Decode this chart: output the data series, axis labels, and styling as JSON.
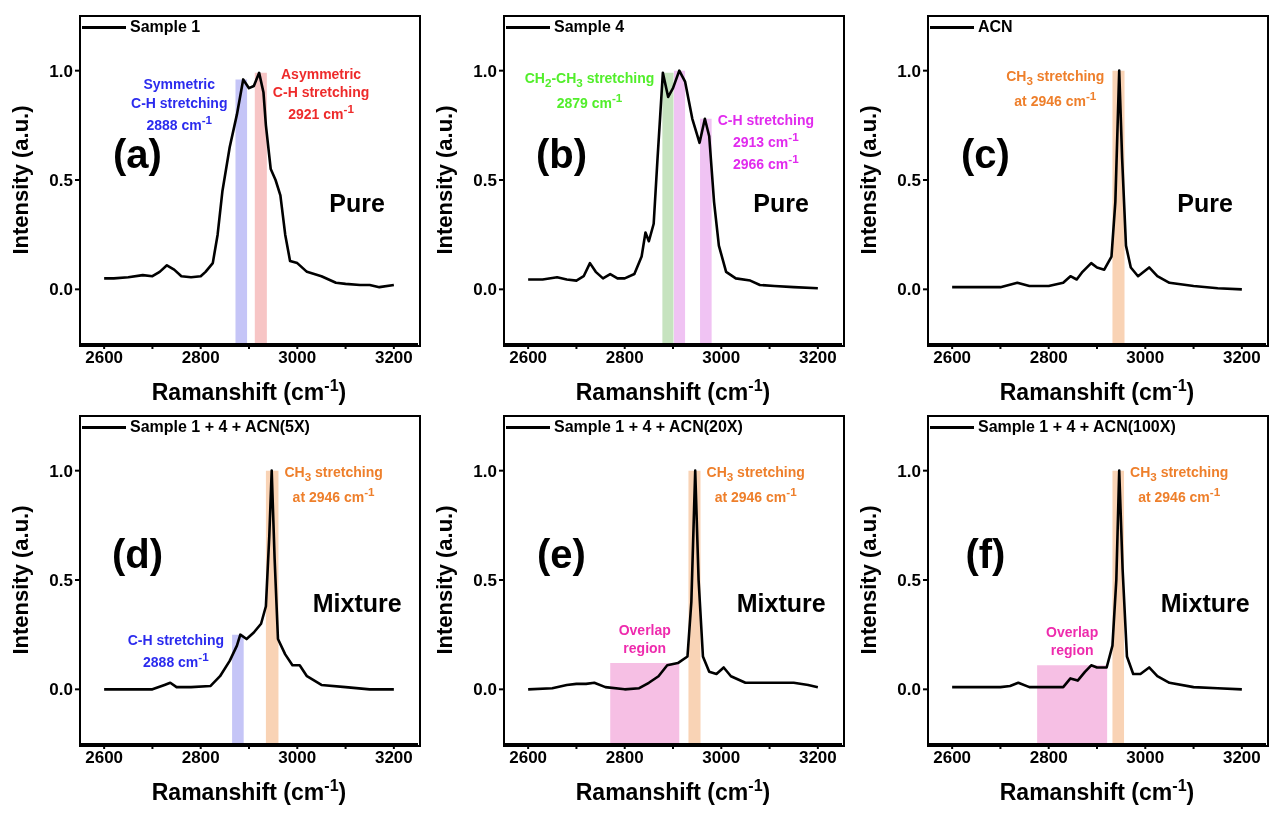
{
  "chart_data": [
    {
      "type": "line",
      "xlabel": "Ramanshift (cm$^{-1}$)",
      "ylabel": "Intensity (a.u.)",
      "xlim": [
        2550,
        3250
      ],
      "ylim": [
        -0.25,
        1.25
      ],
      "xticks": [
        2600,
        {
          "value": 2700,
          "label": null
        },
        2800,
        {
          "value": 2900,
          "label": null
        },
        3000,
        {
          "value": 3100,
          "label": null
        },
        3200
      ],
      "yticks": [
        {
          "value": 0,
          "label": "0.0"
        },
        {
          "value": 0.5,
          "label": "0.5"
        },
        {
          "value": 1,
          "label": "1.0"
        }
      ],
      "legend": "top left",
      "series": [
        {
          "name": "Sample 1",
          "color": "#000000",
          "x": [
            2600,
            2620,
            2650,
            2680,
            2700,
            2715,
            2730,
            2745,
            2760,
            2780,
            2800,
            2810,
            2825,
            2835,
            2845,
            2860,
            2875,
            2888,
            2900,
            2910,
            2921,
            2930,
            2935,
            2945,
            2955,
            2965,
            2975,
            2985,
            3000,
            3020,
            3050,
            3080,
            3100,
            3130,
            3150,
            3170,
            3200
          ],
          "values": [
            0.05,
            0.05,
            0.055,
            0.065,
            0.06,
            0.08,
            0.11,
            0.09,
            0.06,
            0.055,
            0.06,
            0.08,
            0.12,
            0.25,
            0.45,
            0.65,
            0.8,
            0.96,
            0.92,
            0.93,
            0.99,
            0.9,
            0.75,
            0.55,
            0.5,
            0.43,
            0.25,
            0.13,
            0.12,
            0.08,
            0.06,
            0.03,
            0.025,
            0.02,
            0.02,
            0.01,
            0.02
          ]
        }
      ],
      "bands": [
        {
          "axis": "x",
          "from": 2872,
          "to": 2896,
          "color": "#c5c5f7"
        },
        {
          "axis": "x",
          "from": 2912,
          "to": 2937,
          "color": "#f7c5c5"
        }
      ],
      "annotations": [
        "(a)",
        "Pure",
        "Symmetric\nC-H stretching\n2888 cm$^{-1}$",
        "Asymmetric\nC-H stretching\n2921 cm$^{-1}$"
      ]
    },
    {
      "type": "line",
      "xlabel": "Ramanshift (cm$^{-1}$)",
      "ylabel": "Intensity (a.u.)",
      "xlim": [
        2550,
        3250
      ],
      "ylim": [
        -0.25,
        1.25
      ],
      "xticks": [
        2600,
        {
          "value": 2700,
          "label": null
        },
        2800,
        {
          "value": 2900,
          "label": null
        },
        3000,
        {
          "value": 3100,
          "label": null
        },
        3200
      ],
      "yticks": [
        {
          "value": 0,
          "label": "0.0"
        },
        {
          "value": 0.5,
          "label": "0.5"
        },
        {
          "value": 1,
          "label": "1.0"
        }
      ],
      "legend": "top left",
      "series": [
        {
          "name": "Sample 4",
          "color": "#000000",
          "x": [
            2600,
            2630,
            2660,
            2680,
            2700,
            2715,
            2728,
            2740,
            2755,
            2770,
            2785,
            2800,
            2820,
            2835,
            2843,
            2850,
            2860,
            2868,
            2879,
            2890,
            2900,
            2913,
            2925,
            2940,
            2955,
            2966,
            2975,
            2985,
            2995,
            3010,
            3030,
            3060,
            3080,
            3110,
            3150,
            3200
          ],
          "values": [
            0.045,
            0.045,
            0.055,
            0.045,
            0.04,
            0.06,
            0.12,
            0.08,
            0.05,
            0.07,
            0.05,
            0.05,
            0.07,
            0.15,
            0.26,
            0.22,
            0.3,
            0.6,
            0.99,
            0.88,
            0.92,
            1.0,
            0.95,
            0.78,
            0.67,
            0.78,
            0.7,
            0.4,
            0.2,
            0.08,
            0.05,
            0.04,
            0.02,
            0.015,
            0.01,
            0.005
          ]
        }
      ],
      "bands": [
        {
          "axis": "x",
          "from": 2878,
          "to": 2901,
          "color": "#c6e3bf"
        },
        {
          "axis": "x",
          "from": 2902,
          "to": 2925,
          "color": "#f0c3f3"
        },
        {
          "axis": "x",
          "from": 2956,
          "to": 2980,
          "color": "#f0c3f3"
        }
      ],
      "annotations": [
        "(b)",
        "Pure",
        "CH$_{2}$-CH$_{3}$ stretching\n2879 cm$^{-1}$",
        "C-H stretching\n2913 cm$^{-1}$\n2966 cm$^{-1}$"
      ]
    },
    {
      "type": "line",
      "xlabel": "Ramanshift (cm$^{-1}$)",
      "ylabel": "Intensity (a.u.)",
      "xlim": [
        2550,
        3250
      ],
      "ylim": [
        -0.25,
        1.25
      ],
      "xticks": [
        2600,
        {
          "value": 2700,
          "label": null
        },
        2800,
        {
          "value": 2900,
          "label": null
        },
        3000,
        {
          "value": 3100,
          "label": null
        },
        3200
      ],
      "yticks": [
        {
          "value": 0,
          "label": "0.0"
        },
        {
          "value": 0.5,
          "label": "0.5"
        },
        {
          "value": 1,
          "label": "1.0"
        }
      ],
      "legend": "top left",
      "series": [
        {
          "name": "ACN",
          "color": "#000000",
          "x": [
            2600,
            2650,
            2700,
            2735,
            2760,
            2800,
            2830,
            2845,
            2858,
            2870,
            2888,
            2900,
            2915,
            2930,
            2938,
            2946,
            2952,
            2960,
            2970,
            2985,
            3008,
            3025,
            3050,
            3100,
            3150,
            3200
          ],
          "values": [
            0.01,
            0.01,
            0.01,
            0.03,
            0.015,
            0.015,
            0.03,
            0.06,
            0.045,
            0.08,
            0.12,
            0.1,
            0.09,
            0.15,
            0.4,
            1.0,
            0.6,
            0.2,
            0.1,
            0.06,
            0.1,
            0.06,
            0.03,
            0.015,
            0.005,
            0.0
          ]
        }
      ],
      "bands": [
        {
          "axis": "x",
          "from": 2932,
          "to": 2957,
          "color": "#f9d3b5"
        }
      ],
      "annotations": [
        "(c)",
        "Pure",
        "CH$_{3}$ stretching\nat 2946 cm$^{-1}$"
      ]
    },
    {
      "type": "line",
      "xlabel": "Ramanshift (cm$^{-1}$)",
      "ylabel": "Intensity (a.u.)",
      "xlim": [
        2550,
        3250
      ],
      "ylim": [
        -0.25,
        1.25
      ],
      "xticks": [
        2600,
        {
          "value": 2700,
          "label": null
        },
        2800,
        {
          "value": 2900,
          "label": null
        },
        3000,
        {
          "value": 3100,
          "label": null
        },
        3200
      ],
      "yticks": [
        {
          "value": 0,
          "label": "0.0"
        },
        {
          "value": 0.5,
          "label": "0.5"
        },
        {
          "value": 1,
          "label": "1.0"
        }
      ],
      "legend": "top left",
      "series": [
        {
          "name": "Sample 1 + 4 + ACN(5X)",
          "color": "#000000",
          "x": [
            2600,
            2650,
            2700,
            2725,
            2737,
            2750,
            2780,
            2820,
            2840,
            2860,
            2875,
            2882,
            2895,
            2910,
            2925,
            2935,
            2942,
            2947,
            2953,
            2960,
            2975,
            2990,
            3005,
            3020,
            3050,
            3100,
            3150,
            3200
          ],
          "values": [
            0,
            0,
            0,
            0.02,
            0.03,
            0.01,
            0.01,
            0.015,
            0.06,
            0.13,
            0.2,
            0.25,
            0.23,
            0.26,
            0.3,
            0.38,
            0.7,
            1.0,
            0.6,
            0.23,
            0.16,
            0.11,
            0.11,
            0.06,
            0.02,
            0.01,
            0,
            0
          ]
        }
      ],
      "bands": [
        {
          "axis": "x",
          "from": 2865,
          "to": 2889,
          "color": "#c5c5f7"
        },
        {
          "axis": "x",
          "from": 2935,
          "to": 2961,
          "color": "#f9d3b5"
        }
      ],
      "annotations": [
        "(d)",
        "Mixture",
        "C-H stretching\n2888 cm$^{-1}$",
        "CH$_{3}$ stretching\nat 2946 cm$^{-1}$"
      ]
    },
    {
      "type": "line",
      "xlabel": "Ramanshift (cm$^{-1}$)",
      "ylabel": "Intensity (a.u.)",
      "xlim": [
        2550,
        3250
      ],
      "ylim": [
        -0.25,
        1.25
      ],
      "xticks": [
        2600,
        {
          "value": 2700,
          "label": null
        },
        2800,
        {
          "value": 2900,
          "label": null
        },
        3000,
        {
          "value": 3100,
          "label": null
        },
        3200
      ],
      "yticks": [
        {
          "value": 0,
          "label": "0.0"
        },
        {
          "value": 0.5,
          "label": "0.5"
        },
        {
          "value": 1,
          "label": "1.0"
        }
      ],
      "legend": "top left",
      "series": [
        {
          "name": "Sample 1 + 4 + ACN(20X)",
          "color": "#000000",
          "x": [
            2600,
            2650,
            2680,
            2700,
            2720,
            2737,
            2760,
            2800,
            2830,
            2850,
            2870,
            2888,
            2910,
            2930,
            2938,
            2946,
            2953,
            2962,
            2975,
            2990,
            3005,
            3020,
            3050,
            3100,
            3150,
            3180,
            3200
          ],
          "values": [
            0,
            0.005,
            0.02,
            0.025,
            0.025,
            0.03,
            0.01,
            0,
            0.005,
            0.03,
            0.06,
            0.11,
            0.12,
            0.15,
            0.4,
            1.0,
            0.5,
            0.15,
            0.08,
            0.07,
            0.1,
            0.06,
            0.03,
            0.03,
            0.03,
            0.02,
            0.01
          ]
        }
      ],
      "bands": [
        {
          "axis": "x",
          "from": 2770,
          "to": 2913,
          "color": "#f6bfe4"
        },
        {
          "axis": "x",
          "from": 2932,
          "to": 2957,
          "color": "#f9d3b5"
        }
      ],
      "annotations": [
        "(e)",
        "Mixture",
        "Overlap\nregion",
        "CH$_{3}$ stretching\nat 2946 cm$^{-1}$"
      ]
    },
    {
      "type": "line",
      "xlabel": "Ramanshift (cm$^{-1}$)",
      "ylabel": "Intensity (a.u.)",
      "xlim": [
        2550,
        3250
      ],
      "ylim": [
        -0.25,
        1.25
      ],
      "xticks": [
        2600,
        {
          "value": 2700,
          "label": null
        },
        2800,
        {
          "value": 2900,
          "label": null
        },
        3000,
        {
          "value": 3100,
          "label": null
        },
        3200
      ],
      "yticks": [
        {
          "value": 0,
          "label": "0.0"
        },
        {
          "value": 0.5,
          "label": "0.5"
        },
        {
          "value": 1,
          "label": "1.0"
        }
      ],
      "legend": "top left",
      "series": [
        {
          "name": "Sample 1 + 4 + ACN(100X)",
          "color": "#000000",
          "x": [
            2600,
            2650,
            2700,
            2720,
            2737,
            2760,
            2800,
            2830,
            2845,
            2860,
            2875,
            2888,
            2900,
            2920,
            2932,
            2940,
            2946,
            2953,
            2962,
            2975,
            2990,
            3008,
            3025,
            3050,
            3100,
            3150,
            3200
          ],
          "values": [
            0.01,
            0.01,
            0.01,
            0.015,
            0.03,
            0.01,
            0.01,
            0.01,
            0.05,
            0.04,
            0.08,
            0.11,
            0.1,
            0.1,
            0.2,
            0.5,
            1.0,
            0.55,
            0.15,
            0.07,
            0.07,
            0.1,
            0.06,
            0.03,
            0.01,
            0.005,
            0
          ]
        }
      ],
      "bands": [
        {
          "axis": "x",
          "from": 2776,
          "to": 2921,
          "color": "#f6bfe4"
        },
        {
          "axis": "x",
          "from": 2932,
          "to": 2956,
          "color": "#f9d3b5"
        }
      ],
      "annotations": [
        "(f)",
        "Mixture",
        "Overlap\nregion",
        "CH$_{3}$ stretching\nat 2946 cm$^{-1}$"
      ]
    }
  ]
}
